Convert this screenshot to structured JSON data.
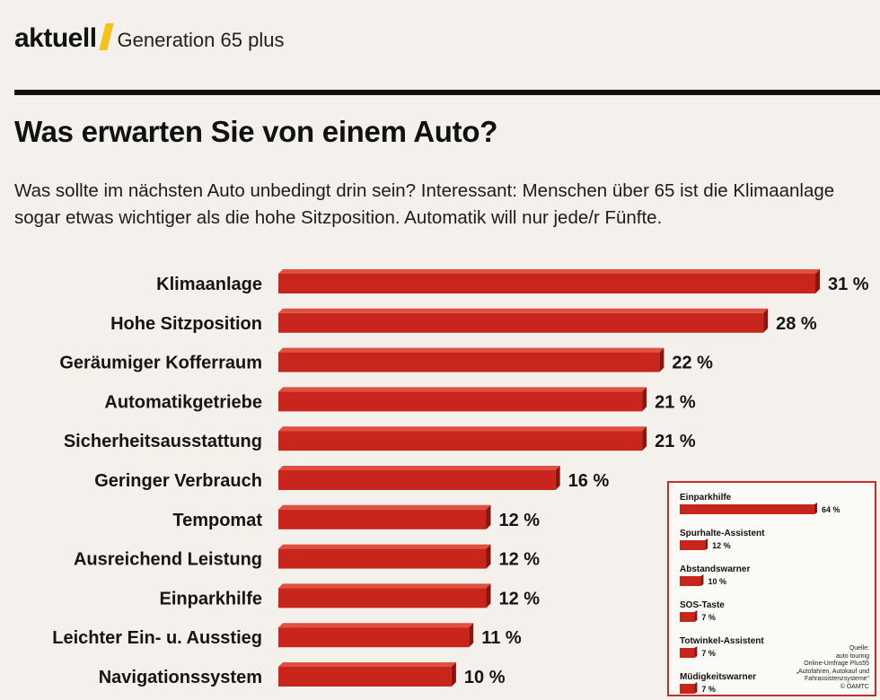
{
  "header": {
    "brand": "aktuell",
    "section": "Generation 65 plus"
  },
  "headline": "Was erwarten Sie von einem Auto?",
  "intro": "Was sollte im nächsten Auto unbedingt drin sein? Interessant: Menschen über 65 ist die Klimaanlage sogar etwas wichtiger als die hohe Sitzposition. Automatik will nur jede/r Fünfte.",
  "colors": {
    "bar": "#c8261c",
    "bar_dark": "#8c140f",
    "bar_top": "#e05040",
    "accent": "#f2c318",
    "inset_border": "#c0302a"
  },
  "chart_data": [
    {
      "type": "bar",
      "orientation": "horizontal",
      "title": "Was erwarten Sie von einem Auto?",
      "categories": [
        "Klimaanlage",
        "Hohe Sitzposition",
        "Geräumiger Kofferraum",
        "Automatikgetriebe",
        "Sicherheitsausstattung",
        "Geringer Verbrauch",
        "Tempomat",
        "Ausreichend Leistung",
        "Einparkhilfe",
        "Leichter Ein- u. Ausstieg",
        "Navigationssystem"
      ],
      "values": [
        31,
        28,
        22,
        21,
        21,
        16,
        12,
        12,
        12,
        11,
        10
      ],
      "value_labels": [
        "31 %",
        "28 %",
        "22 %",
        "21 %",
        "21 %",
        "16 %",
        "12 %",
        "12 %",
        "12 %",
        "11 %",
        "10 %"
      ],
      "unit": "%",
      "xlim": [
        0,
        31
      ],
      "grid": false,
      "legend": "none"
    },
    {
      "type": "bar",
      "orientation": "horizontal",
      "categories": [
        "Einparkhilfe",
        "Spurhalte-Assistent",
        "Abstandswarner",
        "SOS-Taste",
        "Totwinkel-Assistent",
        "Müdigkeitswarner"
      ],
      "values": [
        64,
        12,
        10,
        7,
        7,
        7
      ],
      "value_labels": [
        "64 %",
        "12 %",
        "10 %",
        "7 %",
        "7 %",
        "7 %"
      ],
      "unit": "%",
      "xlim": [
        0,
        64
      ],
      "grid": false,
      "legend": "none"
    }
  ],
  "source": {
    "lines": [
      "Quelle:",
      "auto touring",
      "Online-Umfrage Plus55",
      "„Autofahren, Autokauf und",
      "Fahrassistenzsysteme“",
      "© ÖAMTC"
    ]
  }
}
